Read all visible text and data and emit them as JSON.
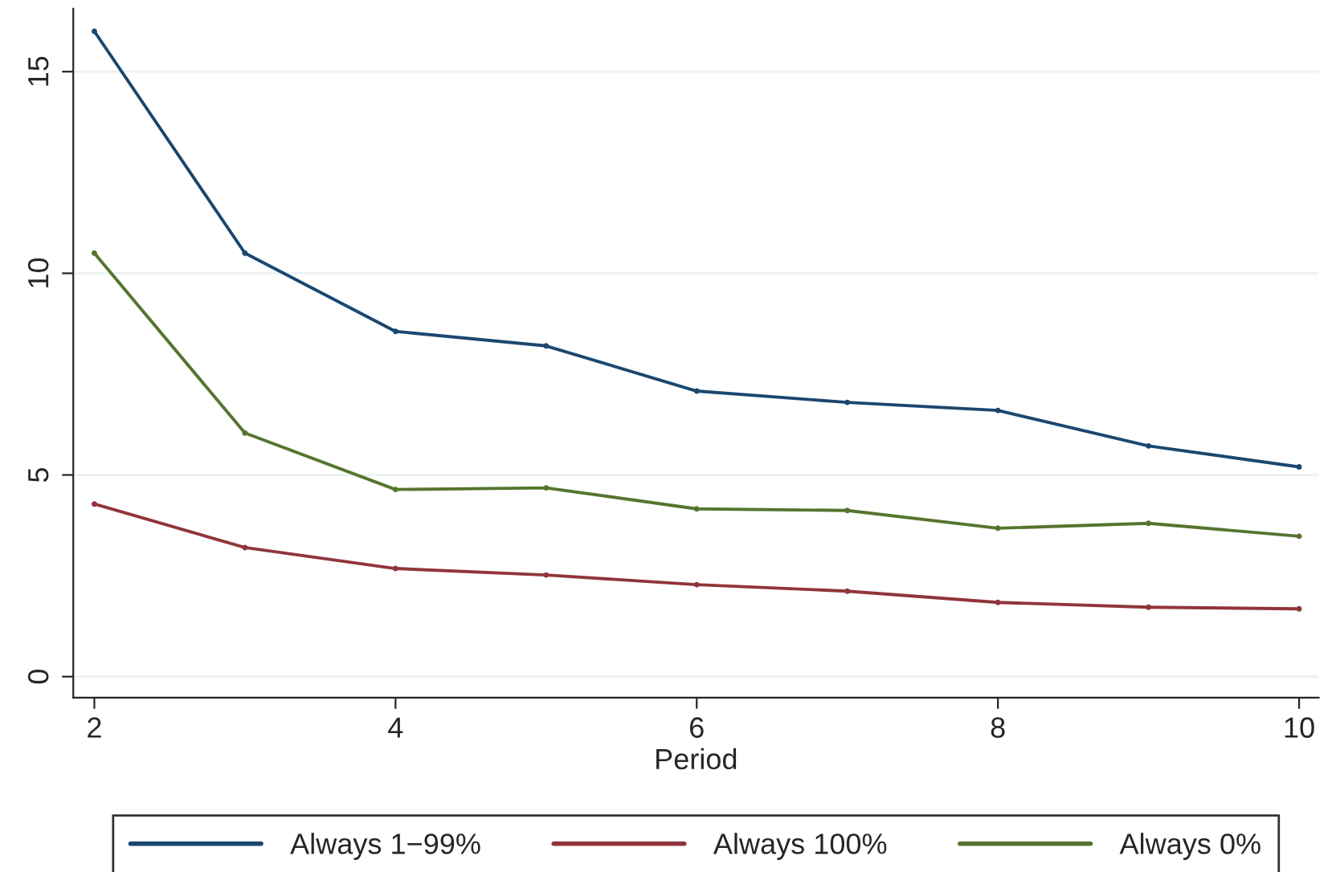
{
  "chart_data": {
    "type": "line",
    "xlabel": "Period",
    "x": [
      2,
      3,
      4,
      5,
      6,
      7,
      8,
      9,
      10
    ],
    "series": [
      {
        "name": "Always 1−99%",
        "color": "#1a476f",
        "values": [
          16.0,
          10.5,
          8.56,
          8.2,
          7.08,
          6.8,
          6.6,
          5.72,
          5.2
        ]
      },
      {
        "name": "Always 100%",
        "color": "#90353b",
        "values": [
          4.28,
          3.2,
          2.68,
          2.52,
          2.28,
          2.12,
          1.84,
          1.72,
          1.68
        ]
      },
      {
        "name": "Always 0%",
        "color": "#55752f",
        "values": [
          10.5,
          6.04,
          4.64,
          4.68,
          4.16,
          4.12,
          3.68,
          3.8,
          3.48
        ]
      }
    ],
    "xlim": [
      1.86,
      10.13
    ],
    "ylim": [
      -0.52,
      16.56
    ],
    "xticks": [
      2,
      4,
      6,
      8,
      10
    ],
    "yticks": [
      0,
      5,
      10,
      15
    ],
    "grid": "y",
    "legend": "bottom",
    "marker": "circle",
    "line_style": "solid"
  }
}
